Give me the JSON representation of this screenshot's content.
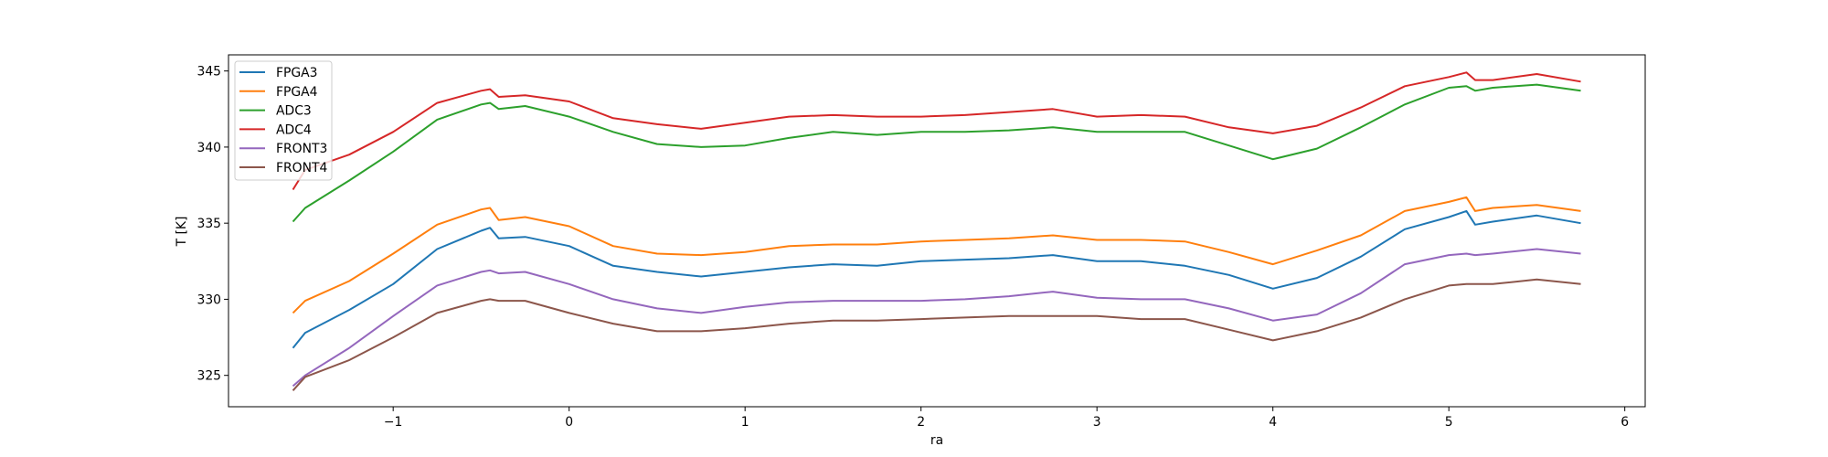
{
  "chart_data": {
    "type": "line",
    "title": "",
    "xlabel": "ra",
    "ylabel": "T [K]",
    "xlim": [
      -1.936,
      6.116
    ],
    "ylim": [
      322.94,
      346.06
    ],
    "xticks": [
      -1,
      0,
      1,
      2,
      3,
      4,
      5,
      6
    ],
    "xtick_labels": [
      "−1",
      "0",
      "1",
      "2",
      "3",
      "4",
      "5",
      "6"
    ],
    "yticks": [
      325,
      330,
      335,
      340,
      345
    ],
    "ytick_labels": [
      "325",
      "330",
      "335",
      "340",
      "345"
    ],
    "grid": false,
    "legend_placement": "upper-left",
    "x": [
      -1.57,
      -1.5,
      -1.25,
      -1.0,
      -0.75,
      -0.5,
      -0.45,
      -0.4,
      -0.25,
      0,
      0.25,
      0.5,
      0.75,
      1.0,
      1.25,
      1.5,
      1.75,
      2.0,
      2.25,
      2.5,
      2.75,
      3.0,
      3.25,
      3.5,
      3.75,
      4.0,
      4.25,
      4.5,
      4.75,
      5.0,
      5.1,
      5.15,
      5.25,
      5.5,
      5.75
    ],
    "series": [
      {
        "name": "FPGA3",
        "color": "#1f77b4",
        "values": [
          326.8,
          327.8,
          329.3,
          331.0,
          333.3,
          334.5,
          334.7,
          334.0,
          334.1,
          333.5,
          332.2,
          331.8,
          331.5,
          331.8,
          332.1,
          332.3,
          332.2,
          332.5,
          332.6,
          332.7,
          332.9,
          332.5,
          332.5,
          332.2,
          331.6,
          330.7,
          331.4,
          332.8,
          334.6,
          335.4,
          335.8,
          334.9,
          335.1,
          335.5,
          335.0
        ]
      },
      {
        "name": "FPGA4",
        "color": "#ff7f0e",
        "values": [
          329.1,
          329.9,
          331.2,
          333.0,
          334.9,
          335.9,
          336.0,
          335.2,
          335.4,
          334.8,
          333.5,
          333.0,
          332.9,
          333.1,
          333.5,
          333.6,
          333.6,
          333.8,
          333.9,
          334.0,
          334.2,
          333.9,
          333.9,
          333.8,
          333.1,
          332.3,
          333.2,
          334.2,
          335.8,
          336.4,
          336.7,
          335.8,
          336.0,
          336.2,
          335.8
        ]
      },
      {
        "name": "ADC3",
        "color": "#2ca02c",
        "values": [
          335.1,
          336.0,
          337.8,
          339.7,
          341.8,
          342.8,
          342.9,
          342.5,
          342.7,
          342.0,
          341.0,
          340.2,
          340.0,
          340.1,
          340.6,
          341.0,
          340.8,
          341.0,
          341.0,
          341.1,
          341.3,
          341.0,
          341.0,
          341.0,
          340.1,
          339.2,
          339.9,
          341.3,
          342.8,
          343.9,
          344.0,
          343.7,
          343.9,
          344.1,
          343.7
        ]
      },
      {
        "name": "ADC4",
        "color": "#d62728",
        "values": [
          337.2,
          338.5,
          339.5,
          341.0,
          342.9,
          343.7,
          343.8,
          343.3,
          343.4,
          343.0,
          341.9,
          341.5,
          341.2,
          341.6,
          342.0,
          342.1,
          342.0,
          342.0,
          342.1,
          342.3,
          342.5,
          342.0,
          342.1,
          342.0,
          341.3,
          340.9,
          341.4,
          342.6,
          344.0,
          344.6,
          344.9,
          344.4,
          344.4,
          344.8,
          344.3
        ]
      },
      {
        "name": "FRONT3",
        "color": "#9467bd",
        "values": [
          324.3,
          325.0,
          326.8,
          328.9,
          330.9,
          331.8,
          331.9,
          331.7,
          331.8,
          331.0,
          330.0,
          329.4,
          329.1,
          329.5,
          329.8,
          329.9,
          329.9,
          329.9,
          330.0,
          330.2,
          330.5,
          330.1,
          330.0,
          330.0,
          329.4,
          328.6,
          329.0,
          330.4,
          332.3,
          332.9,
          333.0,
          332.9,
          333.0,
          333.3,
          333.0
        ]
      },
      {
        "name": "FRONT4",
        "color": "#8c564b",
        "values": [
          324.0,
          324.9,
          326.0,
          327.5,
          329.1,
          329.9,
          330.0,
          329.9,
          329.9,
          329.1,
          328.4,
          327.9,
          327.9,
          328.1,
          328.4,
          328.6,
          328.6,
          328.7,
          328.8,
          328.9,
          328.9,
          328.9,
          328.7,
          328.7,
          328.0,
          327.3,
          327.9,
          328.8,
          330.0,
          330.9,
          331.0,
          331.0,
          331.0,
          331.3,
          331.0
        ]
      }
    ]
  }
}
